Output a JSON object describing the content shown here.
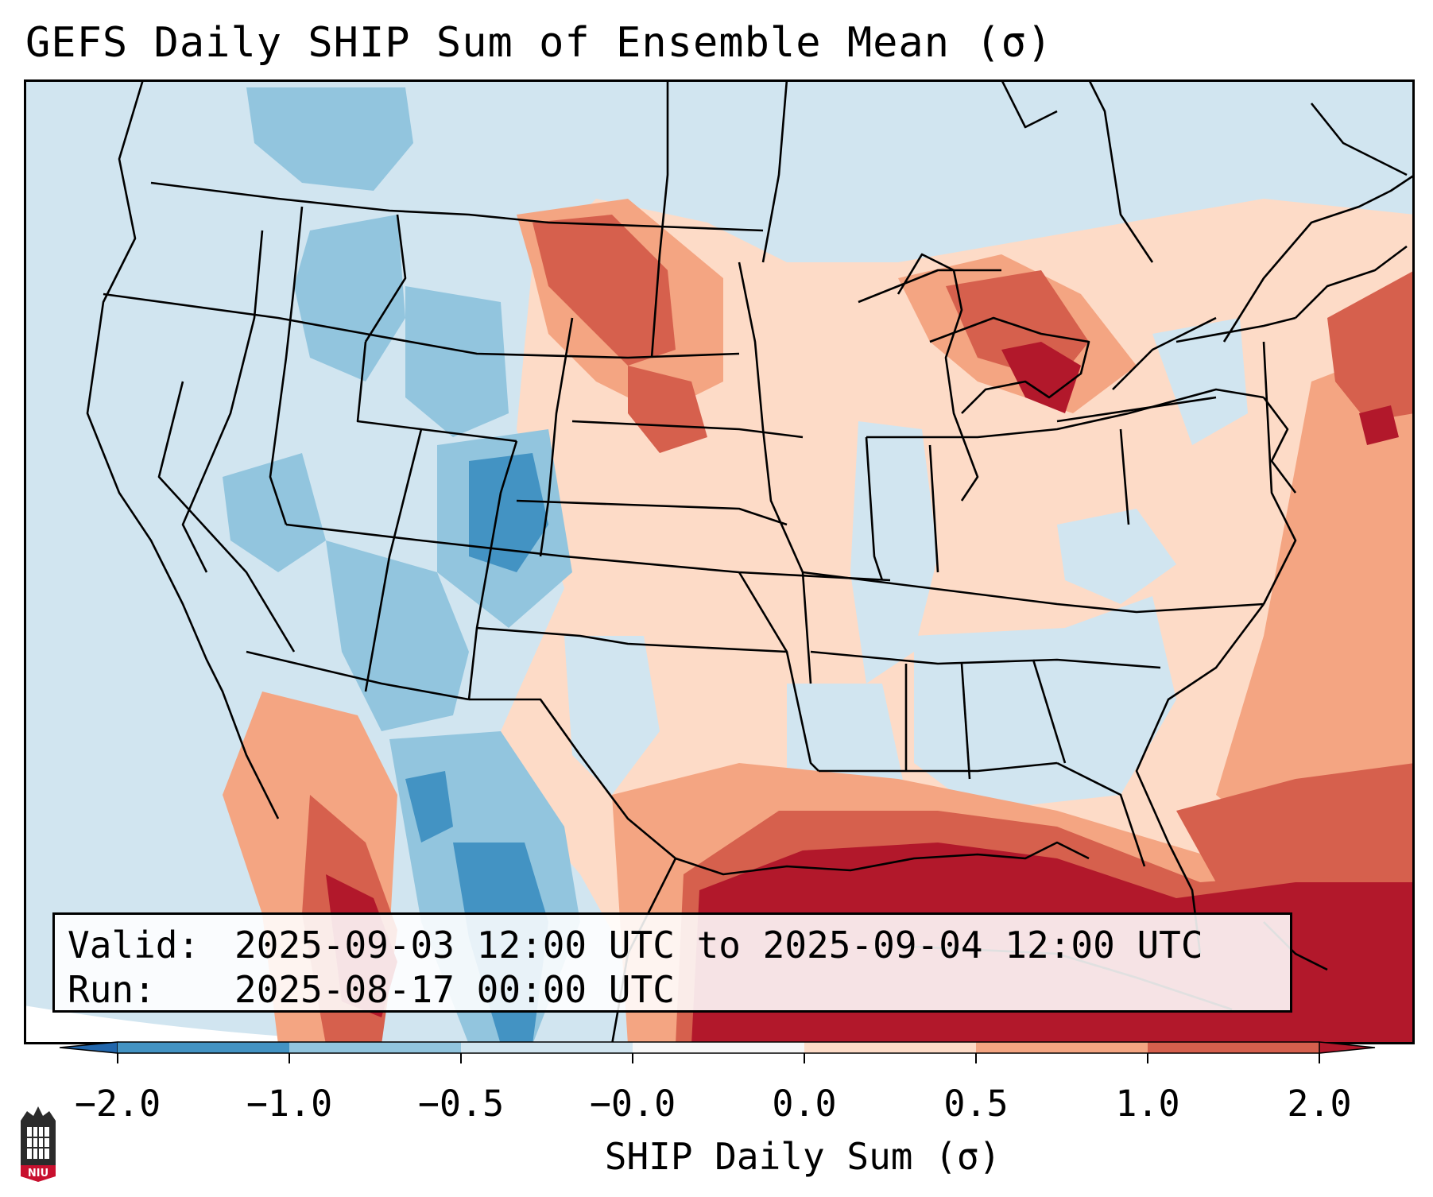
{
  "title": "GEFS Daily SHIP Sum of Ensemble Mean (σ)",
  "info": {
    "valid_label": "Valid:",
    "valid_value": "2025-09-03 12:00 UTC to 2025-09-04 12:00 UTC",
    "run_label": "Run:",
    "run_value": "2025-08-17 00:00 UTC"
  },
  "colorbar": {
    "label": "SHIP Daily Sum (σ)",
    "ticks": [
      "−2.0",
      "−1.0",
      "−0.5",
      "−0.0",
      "0.0",
      "0.5",
      "1.0",
      "2.0"
    ],
    "bins": [
      {
        "range": "< -2.0",
        "color": "#2166ac"
      },
      {
        "range": "-2.0 to -1.0",
        "color": "#4393c3"
      },
      {
        "range": "-1.0 to -0.5",
        "color": "#92c5de"
      },
      {
        "range": "-0.5 to -0.0",
        "color": "#d1e5f0"
      },
      {
        "range": "-0.0 to 0.0",
        "color": "#f7f7f7"
      },
      {
        "range": "0.0 to 0.5",
        "color": "#fddbc7"
      },
      {
        "range": "0.5 to 1.0",
        "color": "#f4a582"
      },
      {
        "range": "1.0 to 2.0",
        "color": "#d6604d"
      },
      {
        "range": "> 2.0",
        "color": "#b2182b"
      }
    ]
  },
  "logo": {
    "text": "NIU"
  }
}
